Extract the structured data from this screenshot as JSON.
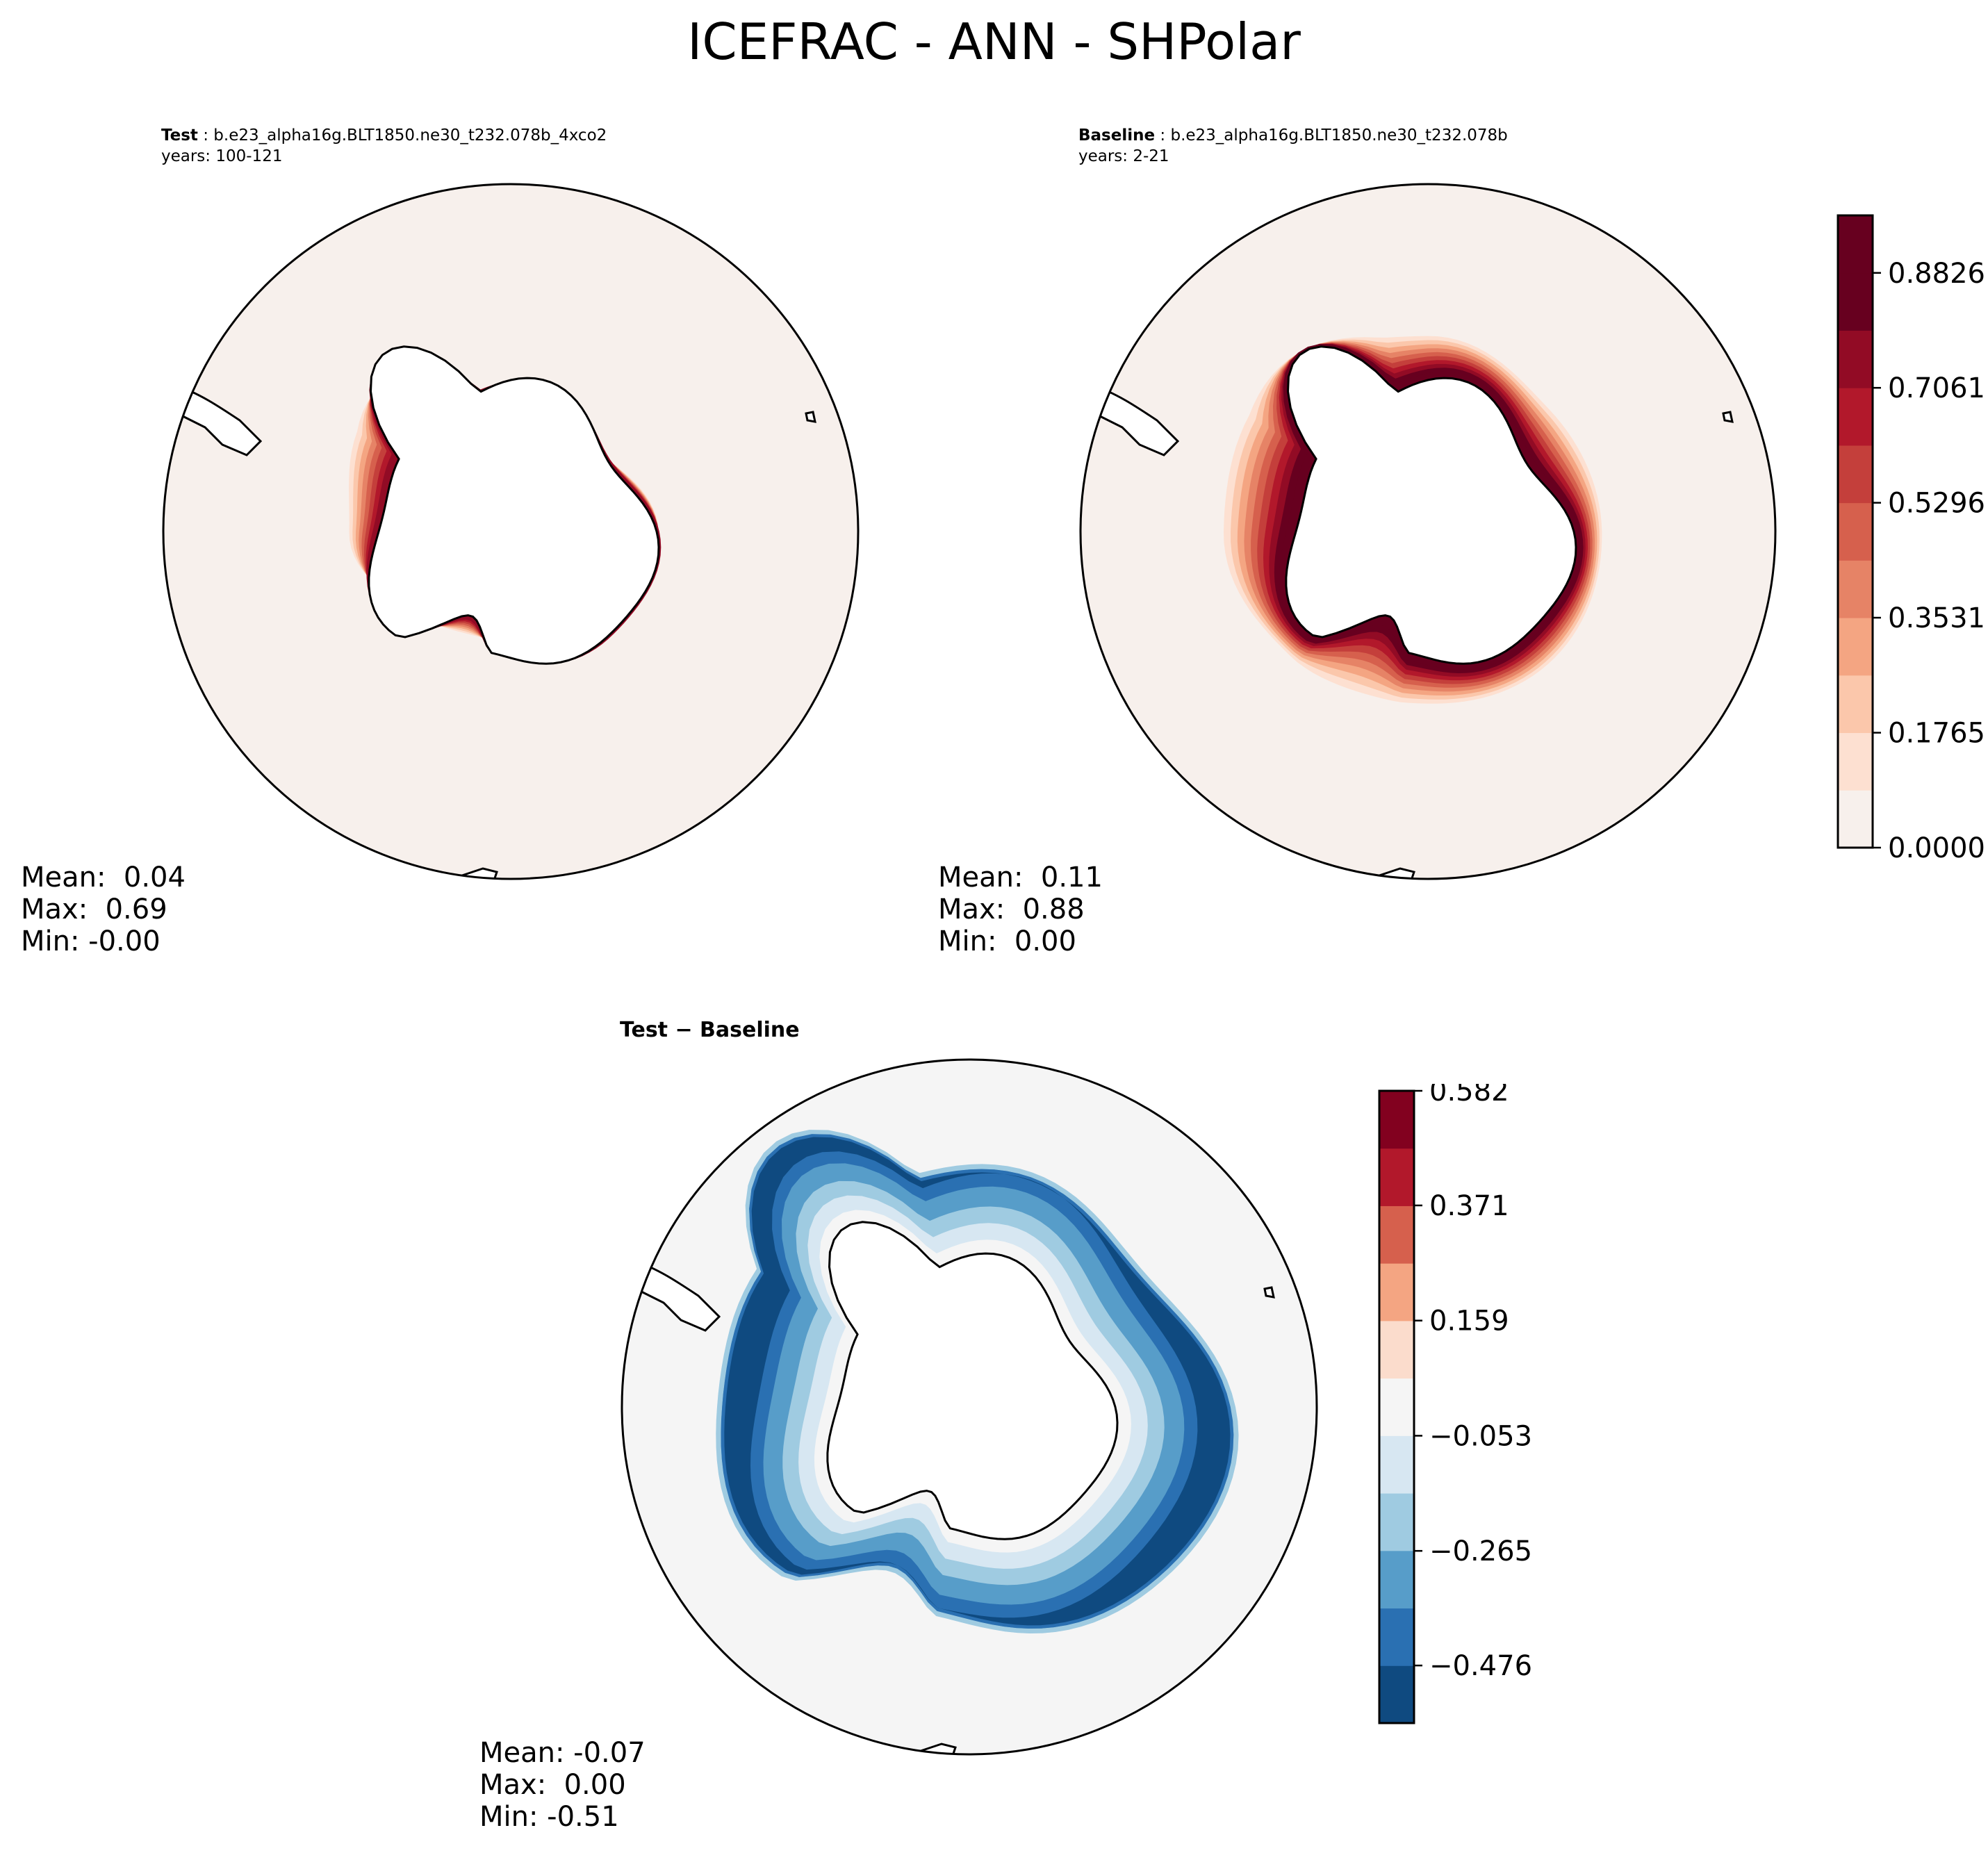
{
  "figure": {
    "title": "ICEFRAC - ANN - SHPolar"
  },
  "panels": [
    {
      "id": "test",
      "label_bold": "Test",
      "label_text": " : b.e23_alpha16g.BLT1850.ne30_t232.078b_4xco2",
      "years": "years: 100-121",
      "stats": {
        "mean": "Mean:  0.04",
        "max": "Max:  0.69",
        "min": "Min: -0.00"
      }
    },
    {
      "id": "baseline",
      "label_bold": "Baseline",
      "label_text": " : b.e23_alpha16g.BLT1850.ne30_t232.078b",
      "years": "years: 2-21",
      "stats": {
        "mean": "Mean:  0.11",
        "max": "Max:  0.88",
        "min": "Min:  0.00"
      }
    },
    {
      "id": "diff",
      "label_bold": "Test − Baseline",
      "stats": {
        "mean": "Mean: -0.07",
        "max": "Max:  0.00",
        "min": "Min: -0.51"
      }
    }
  ],
  "chart_data": [
    {
      "type": "heatmap",
      "title": "Test",
      "projection": "south-polar-stereographic",
      "colormap": "RdBu_r (upper half)",
      "levels": [
        0.0,
        0.0882,
        0.1765,
        0.2648,
        0.3531,
        0.4413,
        0.5296,
        0.6178,
        0.7061,
        0.7944,
        0.8826,
        0.9709
      ],
      "colorbar_ticks": [
        "0.0000",
        "0.1765",
        "0.3531",
        "0.5296",
        "0.7061",
        "0.8826"
      ],
      "ring": {
        "lon_deg": [
          0,
          45,
          90,
          135,
          180,
          225,
          270,
          315
        ],
        "colat_deg": [
          25,
          24,
          18,
          20,
          28,
          33,
          22,
          20
        ],
        "peak_value": 0.69
      },
      "mean": 0.04,
      "max": 0.69,
      "min": -0.0
    },
    {
      "type": "heatmap",
      "title": "Baseline",
      "projection": "south-polar-stereographic",
      "colormap": "RdBu_r (upper half)",
      "levels": [
        0.0,
        0.0882,
        0.1765,
        0.2648,
        0.3531,
        0.4413,
        0.5296,
        0.6178,
        0.7061,
        0.7944,
        0.8826,
        0.9709
      ],
      "colorbar_ticks": [
        "0.0000",
        "0.1765",
        "0.3531",
        "0.5296",
        "0.7061",
        "0.8826"
      ],
      "ring": {
        "lon_deg": [
          0,
          45,
          90,
          135,
          180,
          225,
          270,
          315
        ],
        "colat_deg": [
          30,
          31,
          30,
          32,
          36,
          38,
          34,
          30
        ],
        "peak_value": 0.88
      },
      "mean": 0.11,
      "max": 0.88,
      "min": 0.0
    },
    {
      "type": "heatmap",
      "title": "Test − Baseline",
      "projection": "south-polar-stereographic",
      "colormap": "RdBu_r",
      "levels": [
        -0.582,
        -0.476,
        -0.371,
        -0.265,
        -0.159,
        -0.053,
        0.053,
        0.159,
        0.265,
        0.371,
        0.476,
        0.582
      ],
      "colorbar_ticks": [
        "−0.476",
        "−0.265",
        "−0.053",
        "0.159",
        "0.371",
        "0.582"
      ],
      "mean": -0.07,
      "max": 0.0,
      "min": -0.51
    }
  ],
  "colors": {
    "reds": [
      "#f7f0ec",
      "#fde0d1",
      "#fbc7ab",
      "#f4a582",
      "#e68366",
      "#d6604d",
      "#c43f3b",
      "#b2182b",
      "#920b25",
      "#67001f"
    ],
    "div": [
      "#0f4a80",
      "#2a70b2",
      "#579dc9",
      "#9fcbe1",
      "#d7e7f2",
      "#f5f5f5",
      "#fbdccc",
      "#f4a582",
      "#d6604d",
      "#b2182b",
      "#82011f"
    ],
    "coast": "#000000",
    "land": "#ffffff"
  }
}
